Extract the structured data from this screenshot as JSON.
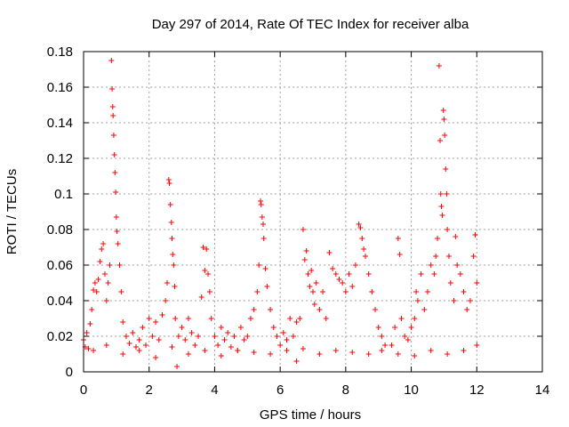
{
  "colors": {
    "series": "#ff0000",
    "grid": "#a0a0a0",
    "axis": "#000000",
    "background": "#ffffff"
  },
  "chart_data": {
    "type": "scatter",
    "title": "Day 297 of 2014, Rate Of TEC Index for receiver alba",
    "xlabel": "GPS time / hours",
    "ylabel": "ROTI / TECUs",
    "xlim": [
      0,
      14
    ],
    "ylim": [
      0,
      0.18
    ],
    "xticks": [
      0,
      2,
      4,
      6,
      8,
      10,
      12,
      14
    ],
    "xtick_labels": [
      "0",
      "2",
      "4",
      "6",
      "8",
      "10",
      "12",
      "14"
    ],
    "yticks": [
      0,
      0.02,
      0.04,
      0.06,
      0.08,
      0.1,
      0.12,
      0.14,
      0.16,
      0.18
    ],
    "ytick_labels": [
      "0",
      "0.02",
      "0.04",
      "0.06",
      "0.08",
      "0.1",
      "0.12",
      "0.14",
      "0.16",
      "0.18"
    ],
    "grid": true,
    "marker": "+",
    "series": [
      {
        "name": "ROTI",
        "points": [
          [
            0.0,
            0.018
          ],
          [
            0.05,
            0.014
          ],
          [
            0.1,
            0.022
          ],
          [
            0.15,
            0.013
          ],
          [
            0.2,
            0.027
          ],
          [
            0.25,
            0.035
          ],
          [
            0.3,
            0.046
          ],
          [
            0.35,
            0.05
          ],
          [
            0.4,
            0.045
          ],
          [
            0.45,
            0.052
          ],
          [
            0.5,
            0.062
          ],
          [
            0.55,
            0.069
          ],
          [
            0.6,
            0.072
          ],
          [
            0.65,
            0.055
          ],
          [
            0.7,
            0.04
          ],
          [
            0.75,
            0.05
          ],
          [
            0.8,
            0.06
          ],
          [
            0.85,
            0.175
          ],
          [
            0.87,
            0.159
          ],
          [
            0.89,
            0.149
          ],
          [
            0.9,
            0.144
          ],
          [
            0.92,
            0.133
          ],
          [
            0.94,
            0.122
          ],
          [
            0.96,
            0.112
          ],
          [
            0.98,
            0.101
          ],
          [
            1.0,
            0.087
          ],
          [
            1.02,
            0.079
          ],
          [
            1.05,
            0.072
          ],
          [
            1.1,
            0.06
          ],
          [
            1.15,
            0.045
          ],
          [
            1.2,
            0.028
          ],
          [
            1.3,
            0.02
          ],
          [
            1.4,
            0.016
          ],
          [
            1.5,
            0.022
          ],
          [
            1.6,
            0.014
          ],
          [
            1.7,
            0.018
          ],
          [
            1.8,
            0.025
          ],
          [
            1.9,
            0.015
          ],
          [
            2.0,
            0.03
          ],
          [
            2.1,
            0.02
          ],
          [
            2.2,
            0.028
          ],
          [
            2.3,
            0.018
          ],
          [
            2.4,
            0.032
          ],
          [
            2.5,
            0.04
          ],
          [
            2.55,
            0.05
          ],
          [
            2.6,
            0.108
          ],
          [
            2.62,
            0.106
          ],
          [
            2.65,
            0.094
          ],
          [
            2.68,
            0.084
          ],
          [
            2.7,
            0.075
          ],
          [
            2.72,
            0.066
          ],
          [
            2.75,
            0.06
          ],
          [
            2.78,
            0.048
          ],
          [
            2.8,
            0.03
          ],
          [
            2.85,
            0.003
          ],
          [
            2.9,
            0.02
          ],
          [
            3.0,
            0.025
          ],
          [
            3.1,
            0.018
          ],
          [
            3.2,
            0.03
          ],
          [
            3.3,
            0.022
          ],
          [
            3.4,
            0.015
          ],
          [
            3.5,
            0.02
          ],
          [
            3.6,
            0.042
          ],
          [
            3.65,
            0.07
          ],
          [
            3.7,
            0.057
          ],
          [
            3.75,
            0.069
          ],
          [
            3.8,
            0.055
          ],
          [
            3.85,
            0.045
          ],
          [
            3.9,
            0.03
          ],
          [
            4.0,
            0.02
          ],
          [
            4.1,
            0.015
          ],
          [
            4.2,
            0.025
          ],
          [
            4.3,
            0.018
          ],
          [
            4.4,
            0.022
          ],
          [
            4.5,
            0.014
          ],
          [
            4.6,
            0.02
          ],
          [
            4.7,
            0.012
          ],
          [
            4.8,
            0.025
          ],
          [
            4.9,
            0.018
          ],
          [
            5.0,
            0.02
          ],
          [
            5.1,
            0.03
          ],
          [
            5.2,
            0.035
          ],
          [
            5.3,
            0.045
          ],
          [
            5.35,
            0.06
          ],
          [
            5.4,
            0.096
          ],
          [
            5.42,
            0.094
          ],
          [
            5.45,
            0.087
          ],
          [
            5.48,
            0.083
          ],
          [
            5.5,
            0.075
          ],
          [
            5.55,
            0.058
          ],
          [
            5.6,
            0.048
          ],
          [
            5.7,
            0.035
          ],
          [
            5.8,
            0.025
          ],
          [
            5.9,
            0.02
          ],
          [
            6.0,
            0.015
          ],
          [
            6.1,
            0.022
          ],
          [
            6.2,
            0.018
          ],
          [
            6.3,
            0.03
          ],
          [
            6.4,
            0.02
          ],
          [
            6.5,
            0.028
          ],
          [
            6.6,
            0.03
          ],
          [
            6.7,
            0.08
          ],
          [
            6.75,
            0.063
          ],
          [
            6.8,
            0.068
          ],
          [
            6.85,
            0.055
          ],
          [
            6.9,
            0.048
          ],
          [
            6.95,
            0.057
          ],
          [
            7.0,
            0.045
          ],
          [
            7.05,
            0.038
          ],
          [
            7.1,
            0.05
          ],
          [
            7.2,
            0.035
          ],
          [
            7.3,
            0.045
          ],
          [
            7.4,
            0.03
          ],
          [
            7.5,
            0.067
          ],
          [
            7.6,
            0.058
          ],
          [
            7.7,
            0.055
          ],
          [
            7.8,
            0.052
          ],
          [
            7.9,
            0.05
          ],
          [
            8.0,
            0.045
          ],
          [
            8.1,
            0.055
          ],
          [
            8.2,
            0.048
          ],
          [
            8.3,
            0.06
          ],
          [
            8.4,
            0.083
          ],
          [
            8.45,
            0.081
          ],
          [
            8.5,
            0.075
          ],
          [
            8.55,
            0.069
          ],
          [
            8.6,
            0.065
          ],
          [
            8.7,
            0.055
          ],
          [
            8.8,
            0.045
          ],
          [
            8.9,
            0.035
          ],
          [
            9.0,
            0.025
          ],
          [
            9.1,
            0.02
          ],
          [
            9.2,
            0.015
          ],
          [
            9.4,
            0.015
          ],
          [
            9.5,
            0.025
          ],
          [
            9.6,
            0.075
          ],
          [
            9.65,
            0.066
          ],
          [
            9.7,
            0.03
          ],
          [
            9.8,
            0.02
          ],
          [
            9.9,
            0.018
          ],
          [
            10.0,
            0.025
          ],
          [
            10.1,
            0.03
          ],
          [
            10.15,
            0.045
          ],
          [
            10.2,
            0.04
          ],
          [
            10.3,
            0.055
          ],
          [
            10.4,
            0.035
          ],
          [
            10.5,
            0.045
          ],
          [
            10.6,
            0.06
          ],
          [
            10.7,
            0.055
          ],
          [
            10.75,
            0.065
          ],
          [
            10.8,
            0.075
          ],
          [
            10.85,
            0.172
          ],
          [
            10.88,
            0.13
          ],
          [
            10.9,
            0.1
          ],
          [
            10.92,
            0.093
          ],
          [
            10.95,
            0.088
          ],
          [
            10.98,
            0.147
          ],
          [
            11.0,
            0.142
          ],
          [
            11.02,
            0.133
          ],
          [
            11.05,
            0.114
          ],
          [
            11.08,
            0.1
          ],
          [
            11.1,
            0.08
          ],
          [
            11.15,
            0.065
          ],
          [
            11.2,
            0.05
          ],
          [
            11.3,
            0.04
          ],
          [
            11.35,
            0.076
          ],
          [
            11.4,
            0.06
          ],
          [
            11.5,
            0.055
          ],
          [
            11.6,
            0.045
          ],
          [
            11.7,
            0.035
          ],
          [
            11.8,
            0.04
          ],
          [
            11.9,
            0.065
          ],
          [
            11.95,
            0.077
          ],
          [
            12.0,
            0.05
          ],
          [
            0.3,
            0.012
          ],
          [
            0.7,
            0.015
          ],
          [
            1.2,
            0.01
          ],
          [
            1.7,
            0.012
          ],
          [
            2.2,
            0.008
          ],
          [
            2.7,
            0.014
          ],
          [
            3.2,
            0.01
          ],
          [
            3.7,
            0.012
          ],
          [
            4.2,
            0.009
          ],
          [
            4.7,
            0.012
          ],
          [
            5.2,
            0.011
          ],
          [
            5.7,
            0.01
          ],
          [
            6.2,
            0.012
          ],
          [
            6.7,
            0.013
          ],
          [
            7.2,
            0.01
          ],
          [
            7.7,
            0.012
          ],
          [
            8.2,
            0.011
          ],
          [
            8.7,
            0.01
          ],
          [
            9.1,
            0.012
          ],
          [
            9.6,
            0.01
          ],
          [
            10.1,
            0.009
          ],
          [
            10.6,
            0.012
          ],
          [
            11.1,
            0.01
          ],
          [
            11.6,
            0.012
          ],
          [
            12.0,
            0.015
          ],
          [
            6.5,
            0.006
          ]
        ]
      }
    ]
  }
}
